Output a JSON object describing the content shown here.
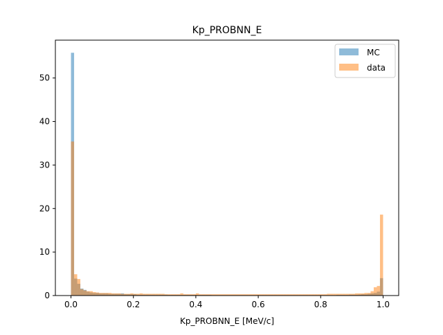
{
  "chart_data": {
    "type": "bar",
    "title": "Kp_PROBNN_E",
    "xlabel": "Kp_PROBNN_E [MeV/c]",
    "ylabel": "",
    "xlim": [
      -0.05,
      1.05
    ],
    "ylim": [
      0,
      58.7
    ],
    "xticks": [
      0.0,
      0.2,
      0.4,
      0.6,
      0.8,
      1.0
    ],
    "xtick_labels": [
      "0.0",
      "0.2",
      "0.4",
      "0.6",
      "0.8",
      "1.0"
    ],
    "yticks": [
      0,
      10,
      20,
      30,
      40,
      50
    ],
    "ytick_labels": [
      "0",
      "10",
      "20",
      "30",
      "40",
      "50"
    ],
    "grid": false,
    "legend_position": "top-right",
    "bins": 100,
    "bin_range": [
      0,
      1
    ],
    "series": [
      {
        "name": "MC",
        "color": "#1f77b4",
        "alpha": 0.5,
        "values": [
          55.8,
          3.9,
          2.7,
          1.6,
          1.3,
          0.9,
          0.7,
          0.6,
          0.6,
          0.5,
          0.5,
          0.5,
          0.4,
          0.4,
          0.4,
          0.4,
          0.5,
          0.3,
          0.3,
          0.3,
          0.3,
          0.2,
          0.2,
          0.2,
          0.2,
          0.2,
          0.2,
          0.2,
          0.2,
          0.2,
          0.2,
          0.15,
          0.15,
          0.15,
          0.15,
          0.15,
          0.15,
          0.15,
          0.15,
          0.15,
          0.15,
          0.15,
          0.15,
          0.15,
          0.15,
          0.1,
          0.1,
          0.1,
          0.1,
          0.1,
          0.1,
          0.1,
          0.1,
          0.1,
          0.1,
          0.1,
          0.1,
          0.1,
          0.1,
          0.1,
          0.1,
          0.1,
          0.1,
          0.1,
          0.1,
          0.1,
          0.1,
          0.1,
          0.1,
          0.1,
          0.1,
          0.1,
          0.1,
          0.1,
          0.1,
          0.1,
          0.1,
          0.1,
          0.1,
          0.1,
          0.1,
          0.1,
          0.1,
          0.1,
          0.1,
          0.15,
          0.15,
          0.15,
          0.15,
          0.2,
          0.2,
          0.2,
          0.25,
          0.3,
          0.3,
          0.4,
          0.5,
          0.6,
          0.9,
          4.0
        ]
      },
      {
        "name": "data",
        "color": "#ff7f0e",
        "alpha": 0.5,
        "values": [
          35.4,
          4.9,
          3.8,
          1.5,
          1.2,
          1.0,
          1.0,
          0.8,
          0.7,
          0.6,
          0.6,
          0.6,
          0.6,
          0.5,
          0.5,
          0.5,
          0.4,
          0.4,
          0.4,
          0.5,
          0.4,
          0.4,
          0.5,
          0.4,
          0.4,
          0.4,
          0.4,
          0.4,
          0.4,
          0.4,
          0.3,
          0.3,
          0.3,
          0.3,
          0.3,
          0.5,
          0.3,
          0.3,
          0.3,
          0.3,
          0.5,
          0.3,
          0.3,
          0.3,
          0.3,
          0.3,
          0.3,
          0.3,
          0.3,
          0.3,
          0.3,
          0.3,
          0.3,
          0.3,
          0.3,
          0.3,
          0.3,
          0.3,
          0.3,
          0.3,
          0.3,
          0.3,
          0.3,
          0.3,
          0.3,
          0.3,
          0.3,
          0.3,
          0.3,
          0.3,
          0.3,
          0.3,
          0.3,
          0.3,
          0.3,
          0.3,
          0.3,
          0.3,
          0.3,
          0.3,
          0.3,
          0.3,
          0.4,
          0.4,
          0.4,
          0.4,
          0.4,
          0.4,
          0.4,
          0.4,
          0.4,
          0.5,
          0.5,
          0.5,
          0.6,
          0.6,
          1.0,
          1.9,
          2.2,
          18.6
        ]
      }
    ]
  }
}
